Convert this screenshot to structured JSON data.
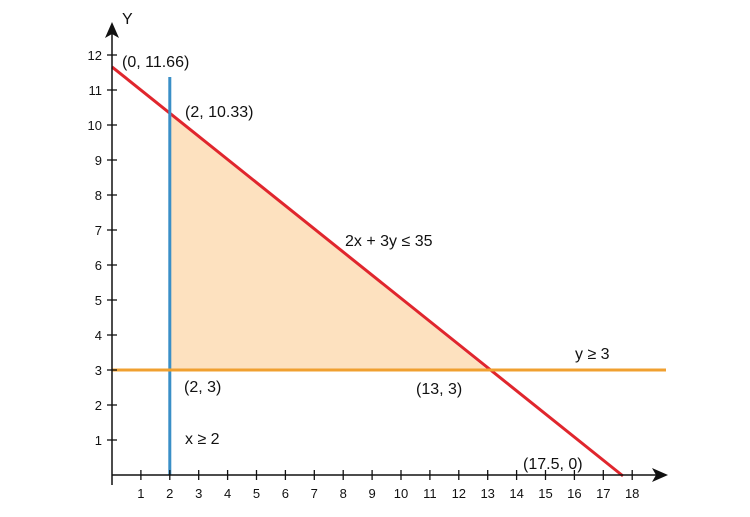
{
  "chart_data": {
    "type": "line",
    "title": "",
    "xlabel": "",
    "ylabel": "Y",
    "xlim": [
      0,
      19
    ],
    "ylim": [
      0,
      12.5
    ],
    "x_ticks": [
      1,
      2,
      3,
      4,
      5,
      6,
      7,
      8,
      9,
      10,
      11,
      12,
      13,
      14,
      15,
      16,
      17,
      18
    ],
    "y_ticks": [
      1,
      2,
      3,
      4,
      5,
      6,
      7,
      8,
      9,
      10,
      11,
      12
    ],
    "grid": false,
    "legend": "none",
    "series": [
      {
        "x": [
          0,
          17.5
        ],
        "y": [
          11.66,
          0
        ],
        "color": "#e0262d"
      },
      {
        "x": [
          2,
          2
        ],
        "y": [
          0,
          11.4
        ],
        "color": "#3a8fc7"
      },
      {
        "x": [
          0,
          19
        ],
        "y": [
          3,
          3
        ],
        "color": "#f0a030"
      }
    ],
    "feasible_region": {
      "vertices": [
        [
          2,
          3
        ],
        [
          2,
          10.33
        ],
        [
          13,
          3
        ]
      ],
      "color": "#fde1bf"
    },
    "annotations": [
      {
        "text": "(0, 11.66)",
        "x": 0,
        "y": 11.66
      },
      {
        "text": "(2, 10.33)",
        "x": 2,
        "y": 10.33
      },
      {
        "text": "2x + 3y ≤ 35",
        "x": 9.5,
        "y": 6.7
      },
      {
        "text": "y ≥ 3",
        "x": 16.0,
        "y": 3
      },
      {
        "text": "(2, 3)",
        "x": 2,
        "y": 3
      },
      {
        "text": "(13, 3)",
        "x": 13,
        "y": 3
      },
      {
        "text": "x ≥ 2",
        "x": 2,
        "y": 1
      },
      {
        "text": "(17.5, 0)",
        "x": 17.5,
        "y": 0
      }
    ]
  }
}
